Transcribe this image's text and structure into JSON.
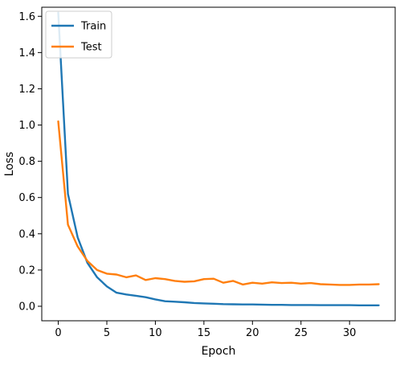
{
  "chart_data": {
    "type": "line",
    "title": "",
    "xlabel": "Epoch",
    "ylabel": "Loss",
    "xlim": [
      -1.7,
      34.7
    ],
    "ylim": [
      -0.08,
      1.65
    ],
    "x_ticks": [
      0,
      5,
      10,
      15,
      20,
      25,
      30
    ],
    "y_ticks": [
      0.0,
      0.2,
      0.4,
      0.6,
      0.8,
      1.0,
      1.2,
      1.4,
      1.6
    ],
    "y_tick_labels": [
      "0.0",
      "0.2",
      "0.4",
      "0.6",
      "0.8",
      "1.0",
      "1.2",
      "1.4",
      "1.6"
    ],
    "grid": false,
    "legend_position": "top-left",
    "x": [
      0,
      1,
      2,
      3,
      4,
      5,
      6,
      7,
      8,
      9,
      10,
      11,
      12,
      13,
      14,
      15,
      16,
      17,
      18,
      19,
      20,
      21,
      22,
      23,
      24,
      25,
      26,
      27,
      28,
      29,
      30,
      31,
      32,
      33
    ],
    "series": [
      {
        "name": "Train",
        "color": "#1f77b4",
        "values": [
          1.62,
          0.62,
          0.38,
          0.24,
          0.16,
          0.11,
          0.075,
          0.065,
          0.058,
          0.05,
          0.038,
          0.028,
          0.025,
          0.022,
          0.018,
          0.016,
          0.014,
          0.012,
          0.011,
          0.01,
          0.01,
          0.009,
          0.008,
          0.008,
          0.007,
          0.007,
          0.007,
          0.006,
          0.006,
          0.006,
          0.006,
          0.005,
          0.005,
          0.005
        ]
      },
      {
        "name": "Test",
        "color": "#ff7f0e",
        "values": [
          1.02,
          0.45,
          0.33,
          0.25,
          0.2,
          0.18,
          0.175,
          0.16,
          0.17,
          0.145,
          0.155,
          0.15,
          0.14,
          0.135,
          0.138,
          0.15,
          0.152,
          0.13,
          0.14,
          0.12,
          0.13,
          0.125,
          0.132,
          0.128,
          0.13,
          0.125,
          0.128,
          0.122,
          0.12,
          0.118,
          0.118,
          0.12,
          0.12,
          0.122
        ]
      }
    ]
  }
}
